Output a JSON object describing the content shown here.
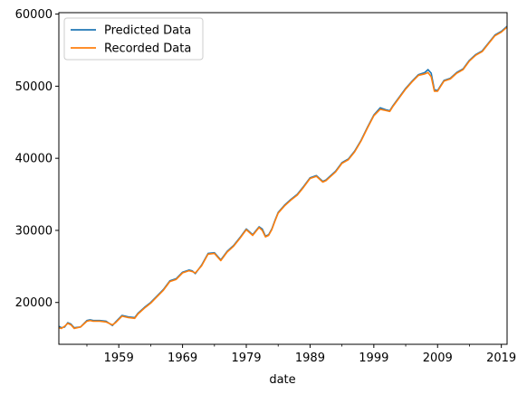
{
  "chart_data": {
    "type": "line",
    "title": "",
    "xlabel": "date",
    "ylabel": "",
    "xlim": [
      1949.6,
      2019.9
    ],
    "ylim": [
      14200,
      60200
    ],
    "x_ticks": [
      1959,
      1969,
      1979,
      1989,
      1999,
      2009,
      2019
    ],
    "y_ticks": [
      20000,
      30000,
      40000,
      50000,
      60000
    ],
    "grid": false,
    "legend_position": "upper left",
    "series": [
      {
        "name": "Predicted Data",
        "color": "#1f77b4",
        "x": [
          1949.6,
          1950.0,
          1950.5,
          1951.0,
          1951.5,
          1952.0,
          1953.0,
          1954.0,
          1954.5,
          1955.0,
          1956.0,
          1957.0,
          1958.0,
          1958.5,
          1959.5,
          1960.5,
          1961.5,
          1962.0,
          1963.0,
          1964.0,
          1965.0,
          1966.0,
          1967.0,
          1968.0,
          1969.0,
          1970.0,
          1970.5,
          1971.0,
          1972.0,
          1973.0,
          1974.0,
          1975.0,
          1976.0,
          1977.0,
          1978.0,
          1979.0,
          1980.0,
          1981.0,
          1981.5,
          1982.0,
          1982.5,
          1983.0,
          1983.5,
          1984.0,
          1985.0,
          1986.0,
          1987.0,
          1988.0,
          1989.0,
          1990.0,
          1991.0,
          1991.5,
          1992.0,
          1993.0,
          1994.0,
          1995.0,
          1996.0,
          1997.0,
          1998.0,
          1999.0,
          2000.0,
          2001.0,
          2001.5,
          2002.0,
          2003.0,
          2004.0,
          2005.0,
          2006.0,
          2007.0,
          2007.5,
          2008.0,
          2008.5,
          2009.0,
          2009.5,
          2010.0,
          2011.0,
          2012.0,
          2013.0,
          2014.0,
          2015.0,
          2016.0,
          2017.0,
          2018.0,
          2019.0,
          2019.9
        ],
        "y": [
          16700,
          16500,
          16600,
          17200,
          17000,
          16500,
          16600,
          17500,
          17600,
          17500,
          17500,
          17400,
          16800,
          17300,
          18200,
          18000,
          17900,
          18500,
          19300,
          20000,
          20900,
          21800,
          23000,
          23300,
          24200,
          24500,
          24400,
          24000,
          25200,
          26800,
          26900,
          25900,
          27100,
          27900,
          29000,
          30200,
          29400,
          30500,
          30200,
          29200,
          29400,
          30200,
          31400,
          32500,
          33500,
          34300,
          35000,
          36100,
          37300,
          37600,
          36800,
          37000,
          37400,
          38200,
          39400,
          39900,
          41000,
          42500,
          44300,
          46000,
          47000,
          46700,
          46600,
          47300,
          48500,
          49700,
          50700,
          51600,
          51900,
          52300,
          51800,
          49500,
          49400,
          50100,
          50800,
          51100,
          51900,
          52400,
          53600,
          54400,
          54900,
          56000,
          57100,
          57600,
          58300
        ]
      },
      {
        "name": "Recorded Data",
        "color": "#ff7f0e",
        "x": [
          1949.6,
          1950.0,
          1950.5,
          1951.0,
          1951.5,
          1952.0,
          1953.0,
          1954.0,
          1954.5,
          1955.0,
          1956.0,
          1957.0,
          1958.0,
          1958.5,
          1959.5,
          1960.5,
          1961.5,
          1962.0,
          1963.0,
          1964.0,
          1965.0,
          1966.0,
          1967.0,
          1968.0,
          1969.0,
          1970.0,
          1970.5,
          1971.0,
          1972.0,
          1973.0,
          1974.0,
          1975.0,
          1976.0,
          1977.0,
          1978.0,
          1979.0,
          1980.0,
          1981.0,
          1981.5,
          1982.0,
          1982.5,
          1983.0,
          1983.5,
          1984.0,
          1985.0,
          1986.0,
          1987.0,
          1988.0,
          1989.0,
          1990.0,
          1991.0,
          1991.5,
          1992.0,
          1993.0,
          1994.0,
          1995.0,
          1996.0,
          1997.0,
          1998.0,
          1999.0,
          2000.0,
          2001.0,
          2001.5,
          2002.0,
          2003.0,
          2004.0,
          2005.0,
          2006.0,
          2007.0,
          2007.5,
          2008.0,
          2008.5,
          2009.0,
          2009.5,
          2010.0,
          2011.0,
          2012.0,
          2013.0,
          2014.0,
          2015.0,
          2016.0,
          2017.0,
          2018.0,
          2019.0,
          2019.9
        ],
        "y": [
          16500,
          16400,
          16700,
          17100,
          16900,
          16400,
          16600,
          17400,
          17500,
          17400,
          17400,
          17300,
          16900,
          17200,
          18100,
          17900,
          17800,
          18400,
          19200,
          19900,
          20800,
          21700,
          22900,
          23200,
          24100,
          24400,
          24300,
          24100,
          25100,
          26700,
          26800,
          25800,
          27000,
          27800,
          28900,
          30100,
          29300,
          30400,
          30000,
          29100,
          29300,
          30100,
          31300,
          32400,
          33400,
          34200,
          34900,
          36000,
          37200,
          37500,
          36700,
          36900,
          37300,
          38100,
          39300,
          39800,
          40900,
          42400,
          44200,
          45900,
          46800,
          46600,
          46500,
          47200,
          48400,
          49600,
          50600,
          51500,
          51700,
          51900,
          51300,
          49300,
          49300,
          50000,
          50700,
          51000,
          51800,
          52300,
          53500,
          54300,
          54800,
          55900,
          57000,
          57500,
          58200
        ]
      }
    ]
  }
}
